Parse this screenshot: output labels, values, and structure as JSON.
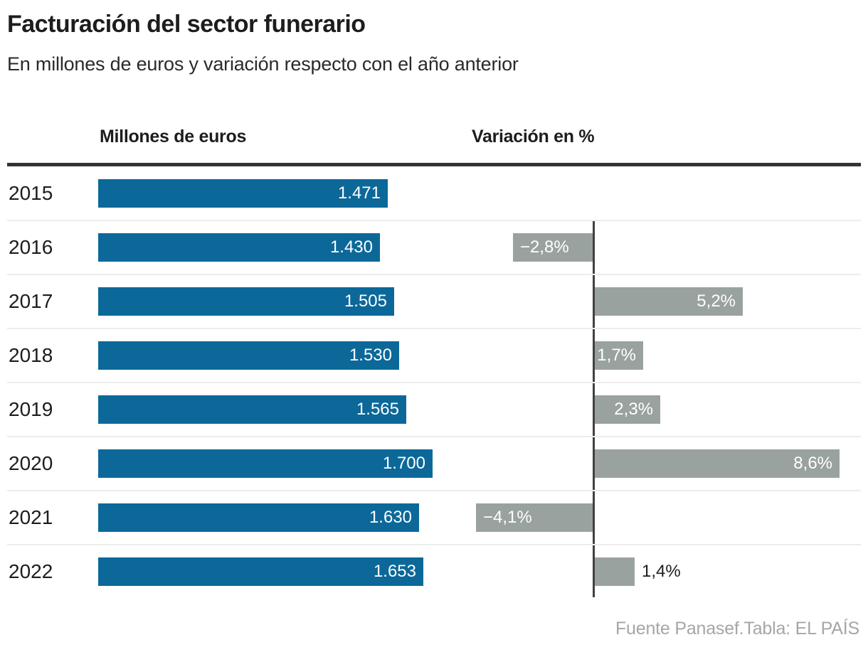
{
  "colors": {
    "bar_blue": "#0c6899",
    "bar_gray": "#9aa2a0",
    "rule": "#333333",
    "separator": "#ececec",
    "zero_line": "#414141",
    "text": "#1d1d1d",
    "subtitle_text": "#2a2a2a",
    "source_text": "#a6a6a6",
    "bar_label": "#ffffff"
  },
  "chart_data": {
    "type": "bar",
    "orientation": "horizontal",
    "title": "Facturación del sector funerario",
    "subtitle": "En millones de euros y variación respecto con el año anterior",
    "categories": [
      "2015",
      "2016",
      "2017",
      "2018",
      "2019",
      "2020",
      "2021",
      "2022"
    ],
    "series": [
      {
        "name": "Millones de euros",
        "unit": "millones de euros",
        "color": "#0c6899",
        "values": [
          1471,
          1430,
          1505,
          1530,
          1565,
          1700,
          1630,
          1653
        ],
        "labels": [
          "1.471",
          "1.430",
          "1.505",
          "1.530",
          "1.565",
          "1.700",
          "1.630",
          "1.653"
        ]
      },
      {
        "name": "Variación en %",
        "unit": "%",
        "color": "#9aa2a0",
        "values": [
          null,
          -2.8,
          5.2,
          1.7,
          2.3,
          8.6,
          -4.1,
          1.4
        ],
        "labels": [
          "",
          "−2,8%",
          "5,2%",
          "1,7%",
          "2,3%",
          "8,6%",
          "−4,1%",
          "1,4%"
        ]
      }
    ],
    "layout_hints": {
      "grid": "row-separators only, no vertical gridlines",
      "legend_position": "column headers above chart",
      "zero_baseline": "dark vertical line in variation column, rows 2016-2022",
      "value_labels": "inside bar ends; 1,4% label outside bar in black"
    },
    "source": "Fuente Panasef.Tabla: EL PAÍS"
  }
}
